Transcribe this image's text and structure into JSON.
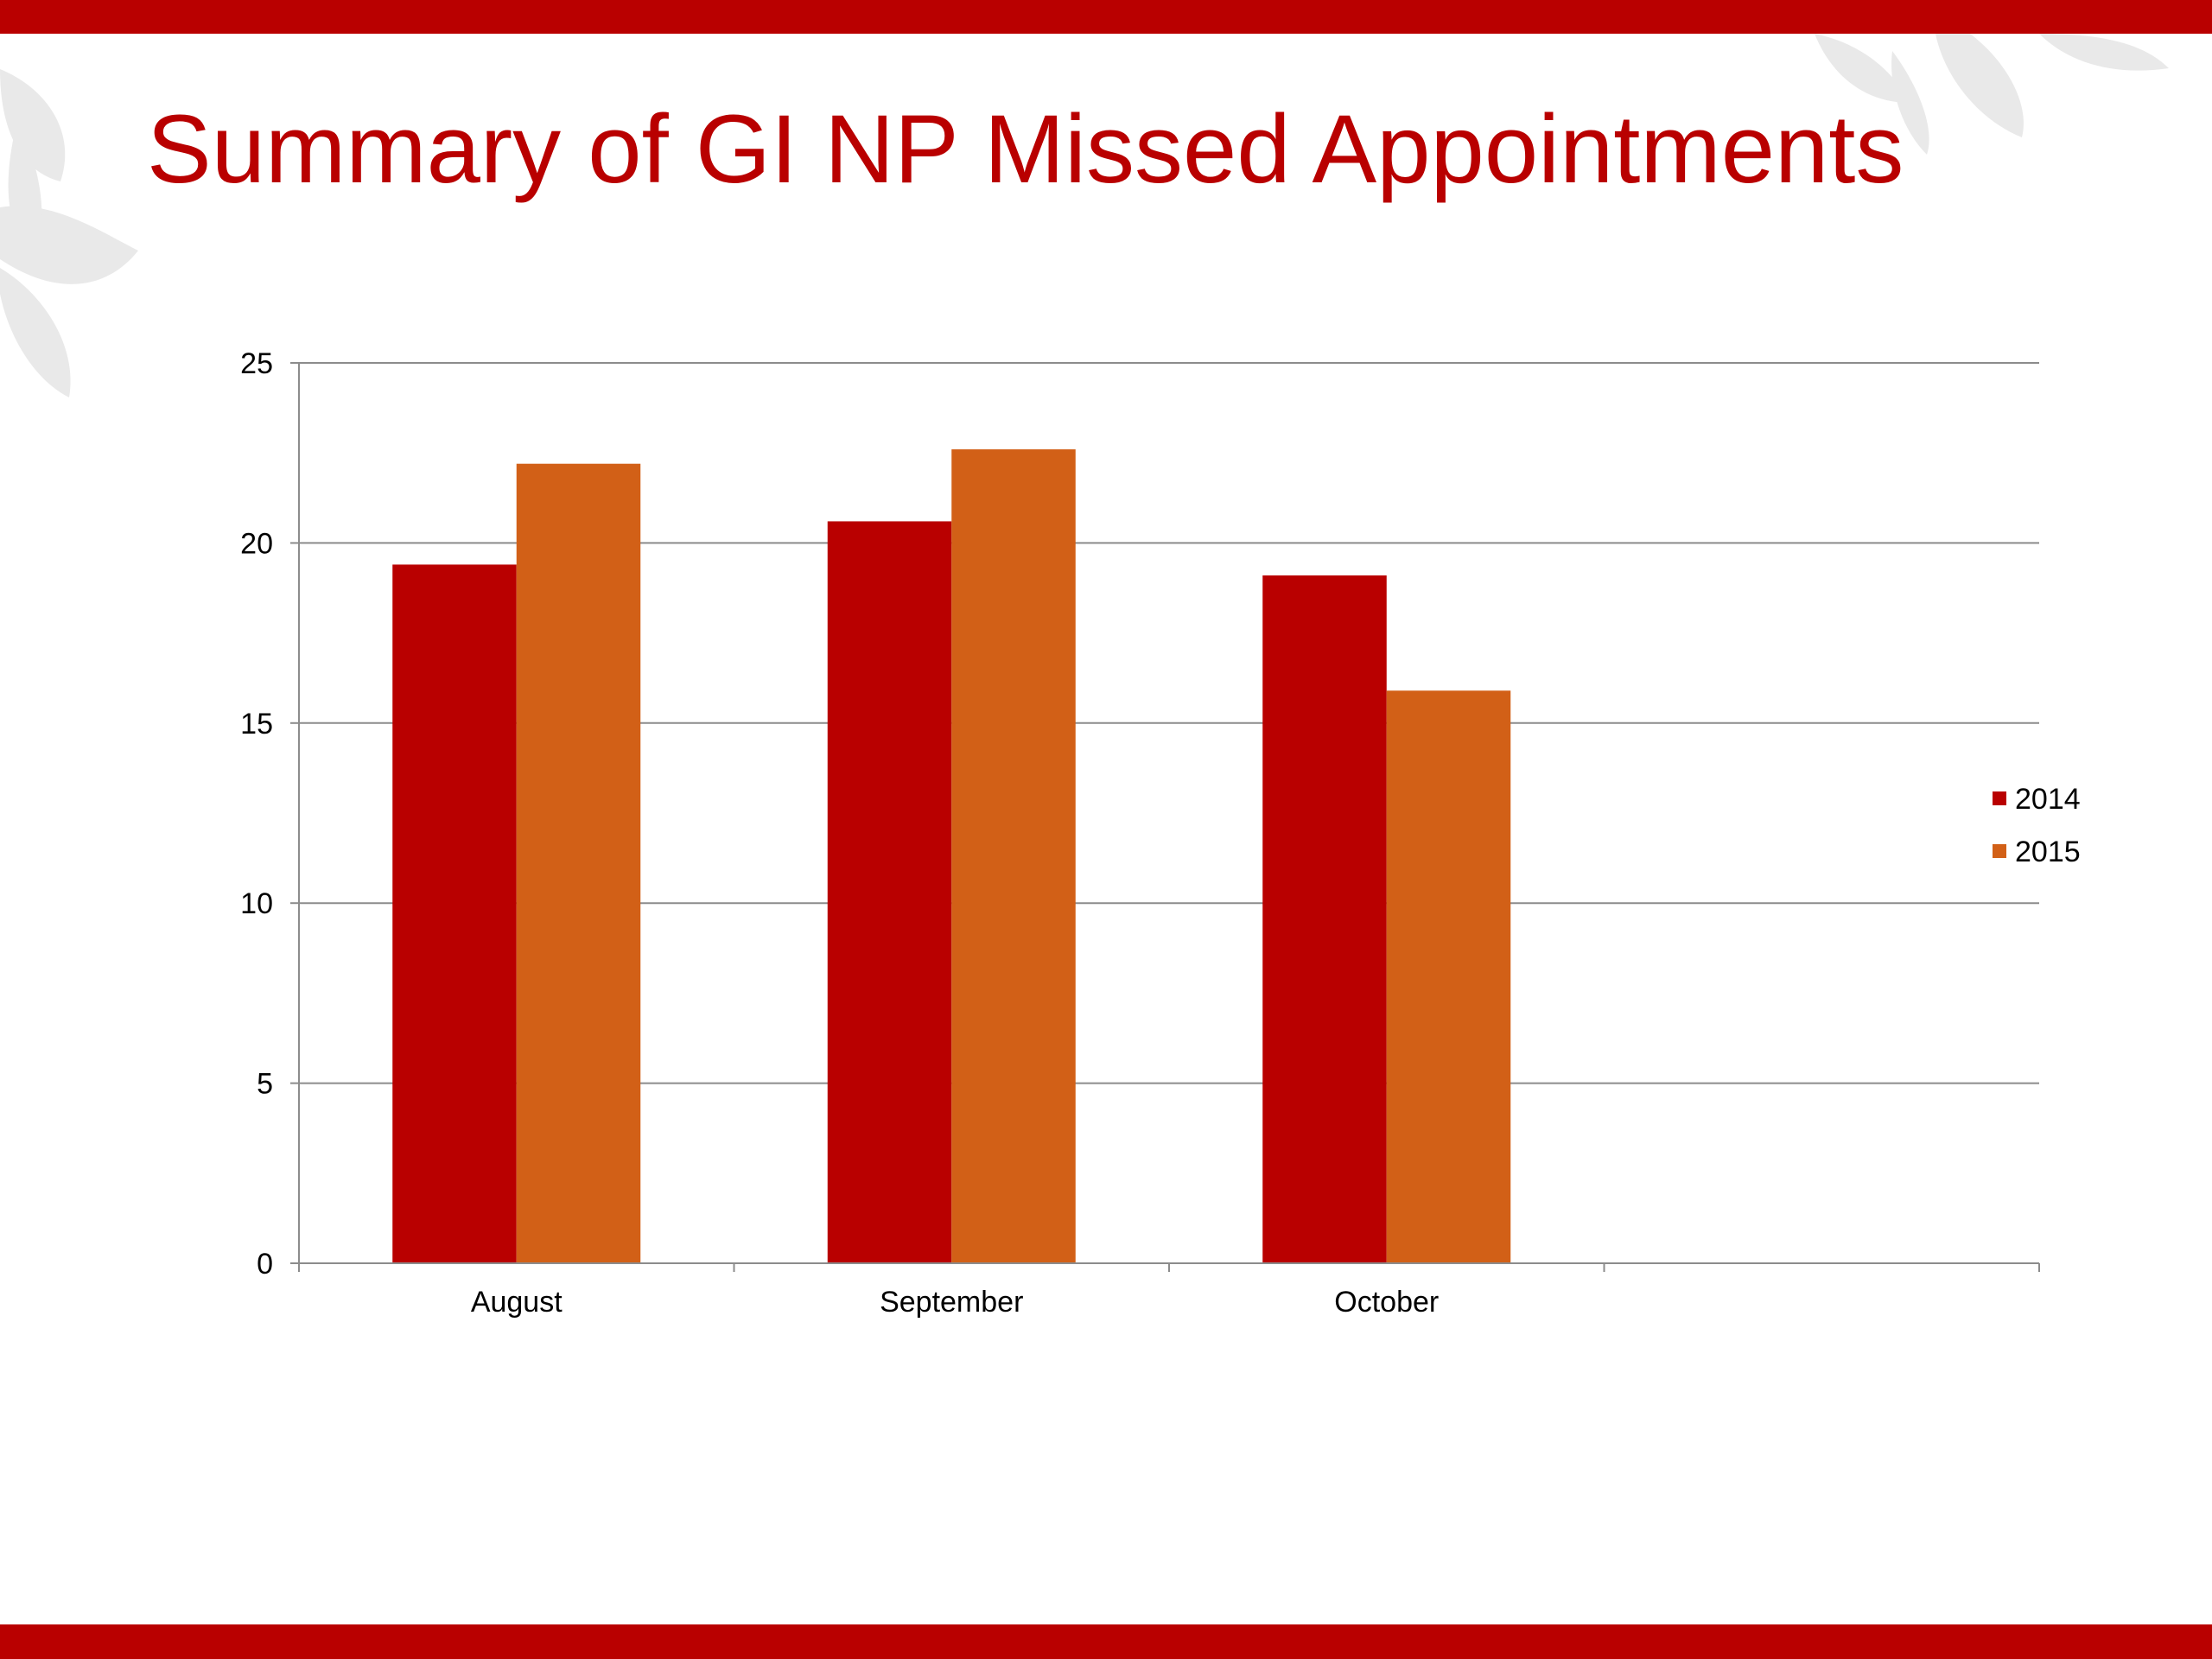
{
  "slide": {
    "title": "Summary of GI NP Missed Appointments"
  },
  "colors": {
    "brand": "#b90000",
    "series_2014": "#b90000",
    "series_2015": "#d26017",
    "gridline": "#8c8c8c"
  },
  "chart_data": {
    "type": "bar",
    "categories": [
      "August",
      "September",
      "October"
    ],
    "series": [
      {
        "name": "2014",
        "values": [
          19.4,
          20.6,
          19.1
        ]
      },
      {
        "name": "2015",
        "values": [
          22.2,
          22.6,
          15.9
        ]
      }
    ],
    "ylim": [
      0,
      25
    ],
    "yticks": [
      "0",
      "5",
      "10",
      "15",
      "20",
      "25"
    ],
    "category_slots": 4,
    "grid": true,
    "legend": "right",
    "title": "",
    "xlabel": "",
    "ylabel": ""
  }
}
